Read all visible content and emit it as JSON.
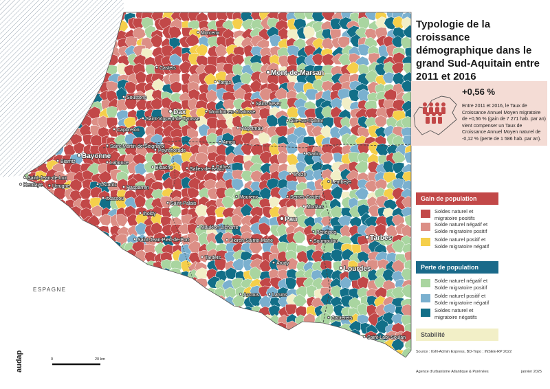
{
  "title": "Typologie de la croissance démographique dans le grand Sud-Aquitain entre 2011 et 2016",
  "info": {
    "value": "+0,56 %",
    "text": "Entre 2011 et 2016, le Taux de Croissance Annuel Moyen migratoire de +0,56 % (gain de 7 271 hab. par an) vient compenser un Taux de Croissance Annuel Moyen naturel de -0,12 % (perte de 1 586 hab. par an)."
  },
  "legend": {
    "gain_title": "Gain de population",
    "loss_title": "Perte de population",
    "stability": "Stabilité",
    "items": [
      {
        "label": "Soldes naturel et migratoire positifs",
        "color": "#c24848"
      },
      {
        "label": "Solde naturel négatif et Solde migratoire positif",
        "color": "#dc8f86"
      },
      {
        "label": "Solde naturel positif et Solde migratoire négatif",
        "color": "#f5cf4a"
      },
      {
        "label": "Solde naturel négatif et Solde migratoire positif",
        "color": "#a9d5a0"
      },
      {
        "label": "Solde naturel positif et Solde migratoire négatif",
        "color": "#7ab0cf"
      },
      {
        "label": "Soldes naturel et migratoire négatifs",
        "color": "#126f88"
      }
    ],
    "stability_color": "#f2efc7"
  },
  "country_label": "ESPAGNE",
  "scale": {
    "start": "0",
    "end": "20 km"
  },
  "logo": "audap",
  "source": "Source : IGN-Admin Express, BD-Topo ; INSEE-RP 2022",
  "agency": "Agence d'urbanisme Atlantique & Pyrénées",
  "date": "janvier 2025",
  "cities": [
    {
      "name": "Morcenx",
      "big": false
    },
    {
      "name": "Castets",
      "big": false
    },
    {
      "name": "Tartas",
      "big": false
    },
    {
      "name": "Mont-de-Marsan",
      "big": true
    },
    {
      "name": "Soustons",
      "big": false
    },
    {
      "name": "Dax",
      "big": true
    },
    {
      "name": "Montfort-en-Chalosse",
      "big": false
    },
    {
      "name": "Saint-Sever",
      "big": false
    },
    {
      "name": "Saint-Vincent-de-Tyrosse",
      "big": false
    },
    {
      "name": "Hagetmau",
      "big": false
    },
    {
      "name": "Aire-sur-l'Adour",
      "big": false
    },
    {
      "name": "Capbreton",
      "big": false
    },
    {
      "name": "Amou",
      "big": false
    },
    {
      "name": "Saint-Martin-de-Seignanx",
      "big": false
    },
    {
      "name": "Peyrehorade",
      "big": false
    },
    {
      "name": "Garlin",
      "big": false
    },
    {
      "name": "Bayonne",
      "big": true
    },
    {
      "name": "Biarritz",
      "big": false
    },
    {
      "name": "Lahonce",
      "big": false
    },
    {
      "name": "Bidache",
      "big": false
    },
    {
      "name": "Salies-de-Béarn",
      "big": false
    },
    {
      "name": "Orthez",
      "big": false
    },
    {
      "name": "Thèze",
      "big": false
    },
    {
      "name": "Lembeye",
      "big": false
    },
    {
      "name": "Saint-Jean-de-Luz",
      "big": false
    },
    {
      "name": "Hendaye",
      "big": false
    },
    {
      "name": "Urrugne",
      "big": false
    },
    {
      "name": "Ustaritz",
      "big": false
    },
    {
      "name": "Hasparren",
      "big": false
    },
    {
      "name": "Mourenx",
      "big": false
    },
    {
      "name": "Serres-Castet",
      "big": false
    },
    {
      "name": "Morlàas",
      "big": false
    },
    {
      "name": "Itxassou",
      "big": false
    },
    {
      "name": "Saint-Palais",
      "big": false
    },
    {
      "name": "Pau",
      "big": true
    },
    {
      "name": "Iholdy",
      "big": false
    },
    {
      "name": "Mauléon-Licharre",
      "big": false
    },
    {
      "name": "Oloron-Sainte-Marie",
      "big": false
    },
    {
      "name": "Soumoulou",
      "big": false
    },
    {
      "name": "Tarbes",
      "big": true
    },
    {
      "name": "Saint-Jean-Pied-de-Port",
      "big": false
    },
    {
      "name": "Bénéjacq",
      "big": false
    },
    {
      "name": "Tardets",
      "big": false
    },
    {
      "name": "Arudy",
      "big": false
    },
    {
      "name": "Lourdes",
      "big": true
    },
    {
      "name": "Accous",
      "big": false
    },
    {
      "name": "Laruns",
      "big": false
    },
    {
      "name": "Cauterets",
      "big": false
    },
    {
      "name": "Saint-Lary-Soulan",
      "big": false
    }
  ]
}
